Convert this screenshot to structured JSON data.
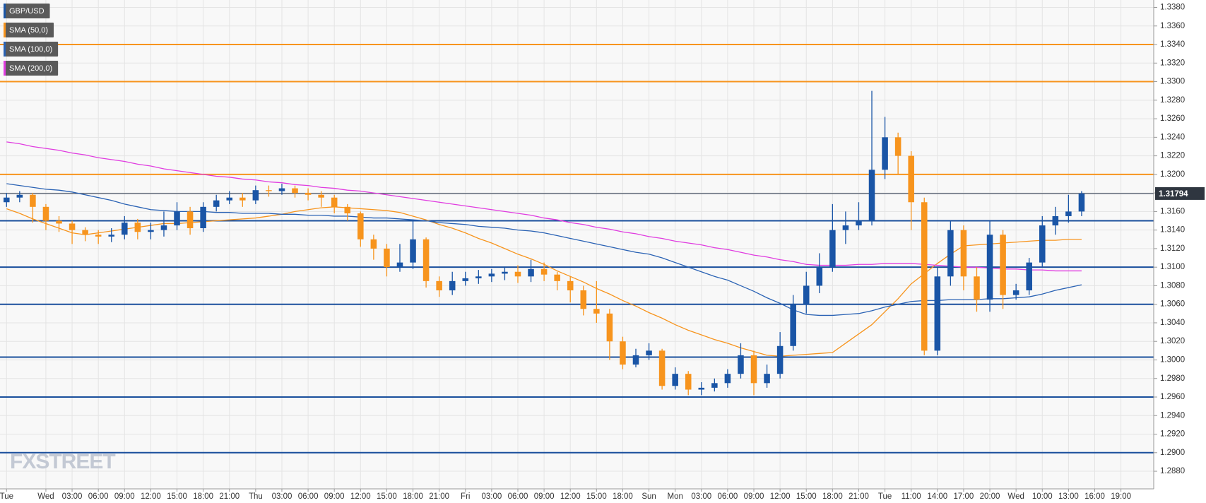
{
  "chart_data": {
    "type": "candlestick",
    "title": "GBP/USD",
    "logo": "FXSTREET",
    "up_color": "#1a55a6",
    "down_color": "#f7941d",
    "grid": true,
    "categories": [
      "Tue",
      null,
      null,
      "Wed",
      null,
      "03:00",
      null,
      "06:00",
      null,
      "09:00",
      null,
      "12:00",
      null,
      "15:00",
      null,
      "18:00",
      null,
      "21:00",
      null,
      "Thu",
      null,
      "03:00",
      null,
      "06:00",
      null,
      "09:00",
      null,
      "12:00",
      null,
      "15:00",
      null,
      "18:00",
      null,
      "21:00",
      null,
      "Fri",
      null,
      "03:00",
      null,
      "06:00",
      null,
      "09:00",
      null,
      "12:00",
      null,
      "15:00",
      null,
      "18:00",
      null,
      "Sun",
      null,
      "Mon",
      null,
      "03:00",
      null,
      "06:00",
      null,
      "09:00",
      null,
      "12:00",
      null,
      "15:00",
      null,
      "18:00",
      null,
      "21:00",
      null,
      "Tue",
      null,
      "11:00",
      null,
      "14:00",
      null,
      "17:00",
      null,
      "20:00",
      null,
      "Wed",
      null,
      "10:00",
      null,
      "13:00",
      null,
      "16:00",
      null,
      "19:00",
      null,
      null
    ],
    "open": [
      1.317,
      1.3175,
      1.3178,
      1.3165,
      1.315,
      1.3147,
      1.314,
      1.3135,
      1.3133,
      1.3135,
      1.3148,
      1.3138,
      1.314,
      1.3145,
      1.316,
      1.3142,
      1.3165,
      1.3172,
      1.3175,
      1.3172,
      1.3183,
      1.3182,
      1.3185,
      1.318,
      1.3178,
      1.3175,
      1.3165,
      1.3158,
      1.313,
      1.312,
      1.31,
      1.3105,
      1.313,
      1.3085,
      1.3075,
      1.3085,
      1.3088,
      1.309,
      1.3093,
      1.3095,
      1.309,
      1.3098,
      1.3092,
      1.3085,
      1.3075,
      1.3055,
      1.305,
      1.302,
      1.2995,
      1.3005,
      1.301,
      1.2972,
      1.2985,
      1.2968,
      1.297,
      1.2975,
      1.2985,
      1.3005,
      1.2975,
      1.2985,
      1.3015,
      1.306,
      1.308,
      1.31,
      1.314,
      1.3145,
      1.315,
      1.3205,
      1.324,
      1.322,
      1.317,
      1.301,
      1.309,
      1.314,
      1.309,
      1.3065,
      1.3135,
      1.307,
      1.3075,
      1.3105,
      1.3145,
      1.3155,
      1.316,
      null,
      null,
      null,
      null,
      null
    ],
    "high": [
      1.318,
      1.3182,
      1.318,
      1.3168,
      1.3155,
      1.315,
      1.3143,
      1.314,
      1.3142,
      1.3155,
      1.3152,
      1.3148,
      1.316,
      1.317,
      1.3165,
      1.317,
      1.3178,
      1.3182,
      1.318,
      1.3188,
      1.3188,
      1.319,
      1.3188,
      1.3185,
      1.3182,
      1.3178,
      1.3168,
      1.316,
      1.3135,
      1.3125,
      1.3125,
      1.315,
      1.3132,
      1.309,
      1.3095,
      1.3095,
      1.3097,
      1.3098,
      1.31,
      1.3102,
      1.3108,
      1.3105,
      1.3095,
      1.309,
      1.308,
      1.3085,
      1.3055,
      1.3025,
      1.3012,
      1.3018,
      1.3012,
      1.2992,
      1.2988,
      1.2976,
      1.298,
      1.299,
      1.3018,
      1.301,
      1.2995,
      1.303,
      1.307,
      1.3095,
      1.3115,
      1.3168,
      1.316,
      1.317,
      1.329,
      1.3262,
      1.3245,
      1.3225,
      1.3175,
      1.31,
      1.315,
      1.3145,
      1.31,
      1.315,
      1.314,
      1.3082,
      1.311,
      1.3155,
      1.3165,
      1.3178,
      1.3182,
      null,
      null,
      null,
      null,
      null
    ],
    "low": [
      1.3165,
      1.317,
      1.3148,
      1.314,
      1.3138,
      1.3125,
      1.3128,
      1.3125,
      1.3127,
      1.313,
      1.313,
      1.313,
      1.3133,
      1.314,
      1.3135,
      1.3138,
      1.316,
      1.3168,
      1.3165,
      1.3168,
      1.3176,
      1.3178,
      1.3175,
      1.3172,
      1.3165,
      1.3158,
      1.315,
      1.3122,
      1.3108,
      1.309,
      1.3095,
      1.3098,
      1.3078,
      1.3068,
      1.307,
      1.308,
      1.3082,
      1.3084,
      1.3086,
      1.3083,
      1.3084,
      1.3085,
      1.3075,
      1.3062,
      1.3048,
      1.304,
      1.3,
      1.299,
      1.2992,
      1.3,
      1.2968,
      1.2968,
      1.2962,
      1.2962,
      1.2966,
      1.297,
      1.298,
      1.2962,
      1.297,
      1.298,
      1.301,
      1.305,
      1.3072,
      1.3095,
      1.3125,
      1.314,
      1.3145,
      1.3195,
      1.32,
      1.314,
      1.3005,
      1.3005,
      1.308,
      1.3075,
      1.3052,
      1.3052,
      1.3055,
      1.3065,
      1.307,
      1.31,
      1.3135,
      1.3148,
      1.3155,
      null,
      null,
      null,
      null,
      null
    ],
    "close": [
      1.3175,
      1.3178,
      1.3165,
      1.315,
      1.3147,
      1.314,
      1.3135,
      1.3133,
      1.3135,
      1.3148,
      1.3138,
      1.314,
      1.3145,
      1.316,
      1.3142,
      1.3165,
      1.3172,
      1.3175,
      1.3172,
      1.3183,
      1.3182,
      1.3185,
      1.318,
      1.3178,
      1.3175,
      1.3165,
      1.3158,
      1.313,
      1.312,
      1.31,
      1.3105,
      1.313,
      1.3085,
      1.3075,
      1.3085,
      1.3088,
      1.309,
      1.3093,
      1.3095,
      1.309,
      1.3098,
      1.3092,
      1.3085,
      1.3075,
      1.3055,
      1.305,
      1.302,
      1.2995,
      1.3005,
      1.301,
      1.2972,
      1.2985,
      1.2968,
      1.297,
      1.2975,
      1.2985,
      1.3005,
      1.2975,
      1.2985,
      1.3015,
      1.306,
      1.308,
      1.31,
      1.314,
      1.3145,
      1.315,
      1.3205,
      1.324,
      1.322,
      1.317,
      1.301,
      1.309,
      1.314,
      1.309,
      1.3065,
      1.3135,
      1.307,
      1.3075,
      1.3105,
      1.3145,
      1.3155,
      1.316,
      1.31794,
      null,
      null,
      null,
      null,
      null
    ],
    "series": [
      {
        "name": "SMA (50,0)",
        "color": "#f7941d",
        "values": [
          1.3163,
          1.3158,
          1.3152,
          1.3147,
          1.3142,
          1.3137,
          1.3135,
          1.3137,
          1.3139,
          1.3141,
          1.3143,
          1.3145,
          1.3147,
          1.3147,
          1.3148,
          1.3149,
          1.315,
          1.3151,
          1.3152,
          1.3153,
          1.3155,
          1.3157,
          1.316,
          1.3162,
          1.3164,
          1.3165,
          1.3164,
          1.3163,
          1.3162,
          1.3161,
          1.3159,
          1.3155,
          1.3151,
          1.3146,
          1.3142,
          1.3137,
          1.3131,
          1.3126,
          1.312,
          1.3114,
          1.3109,
          1.3103,
          1.3096,
          1.309,
          1.3084,
          1.3077,
          1.3071,
          1.3064,
          1.3058,
          1.3051,
          1.3045,
          1.3038,
          1.3032,
          1.3027,
          1.3022,
          1.3018,
          1.3013,
          1.3009,
          1.3005,
          1.3004,
          1.3005,
          1.3006,
          1.3007,
          1.3008,
          1.3018,
          1.3028,
          1.3038,
          1.3052,
          1.3066,
          1.3082,
          1.3093,
          1.3104,
          1.3114,
          1.3123,
          1.3124,
          1.3125,
          1.3126,
          1.3127,
          1.3128,
          1.3129,
          1.3129,
          1.313,
          1.313,
          null,
          null,
          null,
          null,
          null
        ]
      },
      {
        "name": "SMA (100,0)",
        "color": "#2a62b4",
        "values": [
          1.319,
          1.3188,
          1.3186,
          1.3184,
          1.3183,
          1.3181,
          1.3178,
          1.3175,
          1.3172,
          1.3168,
          1.3165,
          1.3162,
          1.3161,
          1.316,
          1.316,
          1.316,
          1.3159,
          1.3159,
          1.3158,
          1.3158,
          1.3158,
          1.3157,
          1.3157,
          1.3156,
          1.3156,
          1.3155,
          1.3155,
          1.3154,
          1.3153,
          1.3153,
          1.3152,
          1.3151,
          1.315,
          1.3148,
          1.3147,
          1.3146,
          1.3144,
          1.3143,
          1.3142,
          1.314,
          1.3139,
          1.3137,
          1.3134,
          1.3131,
          1.3128,
          1.3125,
          1.3122,
          1.3119,
          1.3116,
          1.3114,
          1.311,
          1.3105,
          1.31,
          1.3095,
          1.309,
          1.3086,
          1.308,
          1.3074,
          1.3067,
          1.3061,
          1.3054,
          1.3049,
          1.3048,
          1.3048,
          1.3049,
          1.305,
          1.3053,
          1.3057,
          1.306,
          1.3063,
          1.3064,
          1.3064,
          1.3065,
          1.3065,
          1.3065,
          1.3066,
          1.3066,
          1.3067,
          1.3068,
          1.3071,
          1.3075,
          1.3078,
          1.3081,
          null,
          null,
          null,
          null,
          null
        ]
      },
      {
        "name": "SMA (200,0)",
        "color": "#e03ce0",
        "values": [
          1.3235,
          1.3233,
          1.323,
          1.3228,
          1.3226,
          1.3223,
          1.3221,
          1.3218,
          1.3216,
          1.3214,
          1.3211,
          1.3209,
          1.3206,
          1.3204,
          1.3202,
          1.32,
          1.3198,
          1.3197,
          1.3195,
          1.3194,
          1.3192,
          1.3191,
          1.3189,
          1.3188,
          1.3186,
          1.3185,
          1.3183,
          1.3182,
          1.318,
          1.3178,
          1.3176,
          1.3174,
          1.3172,
          1.317,
          1.3168,
          1.3166,
          1.3164,
          1.3162,
          1.316,
          1.3158,
          1.3156,
          1.3153,
          1.3151,
          1.3148,
          1.3146,
          1.3143,
          1.3141,
          1.3138,
          1.3136,
          1.3133,
          1.3131,
          1.3128,
          1.3126,
          1.3124,
          1.3121,
          1.3119,
          1.3116,
          1.3113,
          1.3111,
          1.3108,
          1.3106,
          1.3103,
          1.3102,
          1.3102,
          1.3102,
          1.3103,
          1.3103,
          1.3104,
          1.3104,
          1.3104,
          1.3103,
          1.3102,
          1.3101,
          1.31,
          1.31,
          1.3099,
          1.3098,
          1.3098,
          1.3097,
          1.3097,
          1.3096,
          1.3096,
          1.3096,
          null,
          null,
          null,
          null,
          null
        ]
      }
    ],
    "levels": [
      {
        "value": 1.334,
        "color": "#f7941d"
      },
      {
        "value": 1.33,
        "color": "#f7941d"
      },
      {
        "value": 1.32,
        "color": "#f7941d"
      },
      {
        "value": 1.315,
        "color": "#1a4f9c"
      },
      {
        "value": 1.31,
        "color": "#1a4f9c"
      },
      {
        "value": 1.306,
        "color": "#1a4f9c"
      },
      {
        "value": 1.3003,
        "color": "#1a4f9c"
      },
      {
        "value": 1.296,
        "color": "#1a4f9c"
      },
      {
        "value": 1.29,
        "color": "#1a4f9c"
      }
    ],
    "last_price": 1.31794,
    "ylim": [
      1.2861,
      1.3388
    ],
    "yticks": [
      {
        "value": 1.288,
        "label": "1.2880"
      },
      {
        "value": 1.29,
        "label": "1.2900"
      },
      {
        "value": 1.292,
        "label": "1.2920"
      },
      {
        "value": 1.294,
        "label": "1.2940"
      },
      {
        "value": 1.296,
        "label": "1.2960"
      },
      {
        "value": 1.298,
        "label": "1.2980"
      },
      {
        "value": 1.3,
        "label": "1.3000"
      },
      {
        "value": 1.302,
        "label": "1.3020"
      },
      {
        "value": 1.304,
        "label": "1.3040"
      },
      {
        "value": 1.306,
        "label": "1.3060"
      },
      {
        "value": 1.308,
        "label": "1.3080"
      },
      {
        "value": 1.31,
        "label": "1.3100"
      },
      {
        "value": 1.312,
        "label": "1.3120"
      },
      {
        "value": 1.314,
        "label": "1.3140"
      },
      {
        "value": 1.316,
        "label": "1.3160"
      },
      {
        "value": 1.318,
        "label": "1.3180"
      },
      {
        "value": 1.32,
        "label": "1.3200"
      },
      {
        "value": 1.322,
        "label": "1.3220"
      },
      {
        "value": 1.324,
        "label": "1.3240"
      },
      {
        "value": 1.326,
        "label": "1.3260"
      },
      {
        "value": 1.328,
        "label": "1.3280"
      },
      {
        "value": 1.33,
        "label": "1.3300"
      },
      {
        "value": 1.332,
        "label": "1.3320"
      },
      {
        "value": 1.334,
        "label": "1.3340"
      },
      {
        "value": 1.336,
        "label": "1.3360"
      },
      {
        "value": 1.338,
        "label": "1.3380"
      }
    ]
  }
}
